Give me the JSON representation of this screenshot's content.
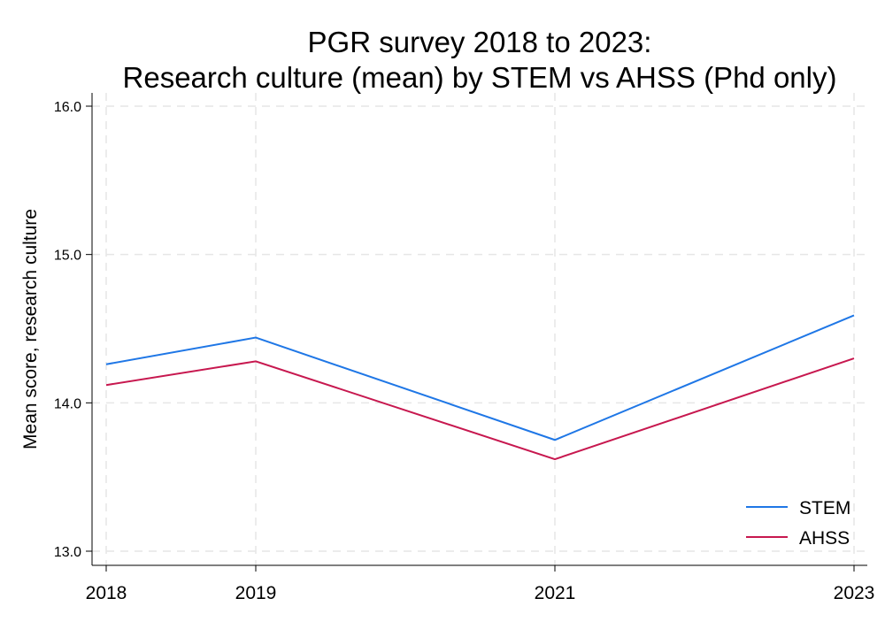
{
  "chart_data": {
    "type": "line",
    "title": [
      "PGR survey 2018 to 2023:",
      "Research culture (mean) by STEM vs AHSS (Phd only)"
    ],
    "xlabel": "",
    "ylabel": "Mean score, research culture",
    "x": [
      2018,
      2019,
      2021,
      2023
    ],
    "x_tick_labels": [
      "2018",
      "2019",
      "2021",
      "2023"
    ],
    "y_ticks": [
      13.0,
      14.0,
      15.0,
      16.0
    ],
    "y_tick_labels": [
      "13.0",
      "14.0",
      "15.0",
      "16.0"
    ],
    "xlim": [
      2018,
      2023
    ],
    "ylim": [
      13.0,
      16.0
    ],
    "grid": true,
    "legend_position": "bottom-right",
    "series": [
      {
        "name": "STEM",
        "color": "#1f77e6",
        "values": [
          14.26,
          14.44,
          13.75,
          14.59
        ]
      },
      {
        "name": "AHSS",
        "color": "#c7184f",
        "values": [
          14.12,
          14.28,
          13.62,
          14.3
        ]
      }
    ]
  }
}
